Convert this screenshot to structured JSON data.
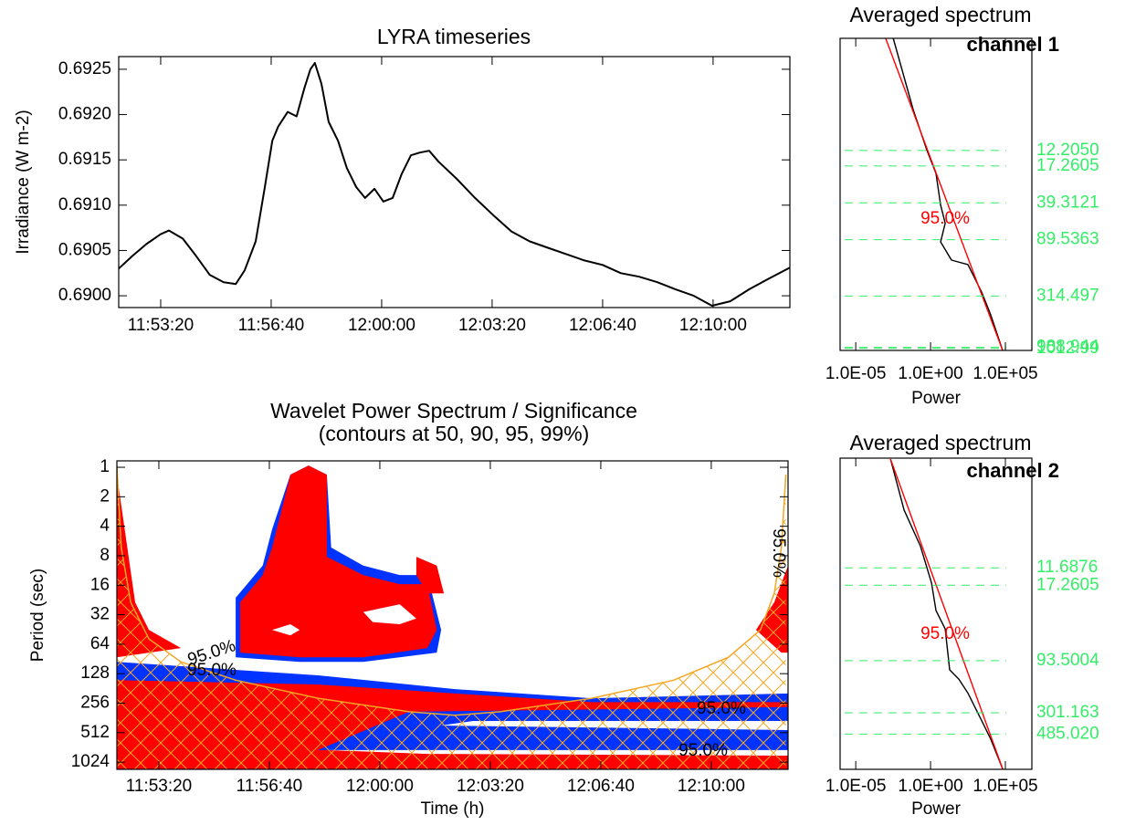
{
  "chart_data": [
    {
      "type": "line",
      "title": "LYRA timeseries",
      "ylabel": "Irradiance (W m-2)",
      "xlim": [
        "11:52:04",
        "12:12:19"
      ],
      "xticks": [
        "11:53:20",
        "11:56:40",
        "12:00:00",
        "12:03:20",
        "12:06:40",
        "12:10:00"
      ],
      "ylim": [
        0.68987,
        0.69264
      ],
      "yticks": [
        {
          "value": 0.69,
          "label": "0.6900"
        },
        {
          "value": 0.6905,
          "label": "0.6905"
        },
        {
          "value": 0.691,
          "label": "0.6910"
        },
        {
          "value": 0.6915,
          "label": "0.6915"
        },
        {
          "value": 0.692,
          "label": "0.6920"
        },
        {
          "value": 0.6925,
          "label": "0.6925"
        }
      ],
      "series": [
        {
          "color": "#000000",
          "x": [
            "11:52:04",
            "11:52:29",
            "11:52:54",
            "11:53:20",
            "11:53:35",
            "11:54:00",
            "11:54:24",
            "11:54:49",
            "11:55:14",
            "11:55:36",
            "11:55:52",
            "11:56:12",
            "11:56:28",
            "11:56:42",
            "11:56:53",
            "11:57:10",
            "11:57:26",
            "11:57:40",
            "11:57:51",
            "11:57:59",
            "11:58:11",
            "11:58:24",
            "11:58:41",
            "11:58:57",
            "11:59:14",
            "11:59:30",
            "11:59:47",
            "12:00:03",
            "12:00:20",
            "12:00:36",
            "12:00:53",
            "12:01:09",
            "12:01:26",
            "12:01:43",
            "12:02:16",
            "12:02:49",
            "12:03:22",
            "12:03:55",
            "12:04:28",
            "12:05:01",
            "12:05:34",
            "12:06:07",
            "12:06:40",
            "12:07:13",
            "12:07:46",
            "12:08:19",
            "12:08:52",
            "12:09:25",
            "12:09:58",
            "12:10:31",
            "12:11:05",
            "12:11:38",
            "12:12:19"
          ],
          "values": [
            0.6903,
            0.69044,
            0.69057,
            0.69068,
            0.69072,
            0.69063,
            0.69044,
            0.69023,
            0.69015,
            0.69013,
            0.69028,
            0.6906,
            0.69118,
            0.69171,
            0.69187,
            0.69203,
            0.69198,
            0.69229,
            0.6925,
            0.69257,
            0.69234,
            0.69192,
            0.69171,
            0.69141,
            0.6912,
            0.69108,
            0.69118,
            0.69104,
            0.69108,
            0.69134,
            0.69155,
            0.69158,
            0.6916,
            0.69148,
            0.69129,
            0.69108,
            0.69089,
            0.69071,
            0.6906,
            0.69053,
            0.69046,
            0.69039,
            0.69034,
            0.69025,
            0.69021,
            0.69015,
            0.69007,
            0.69,
            0.68989,
            0.68994,
            0.69007,
            0.69018,
            0.69031
          ]
        }
      ]
    },
    {
      "type": "contour",
      "title": "Wavelet Power Spectrum / Significance",
      "subtitle": "(contours at 50, 90, 95, 99%)",
      "xlabel": "Time (h)",
      "ylabel": "Period (sec)",
      "xlim": [
        "11:52:04",
        "12:12:19"
      ],
      "xticks": [
        "11:53:20",
        "11:56:40",
        "12:00:00",
        "12:03:20",
        "12:06:40",
        "12:10:00"
      ],
      "ylim": [
        0.86,
        1213
      ],
      "ylog": true,
      "yreverse": true,
      "yticks": [
        1,
        2,
        4,
        8,
        16,
        32,
        64,
        128,
        256,
        512,
        1024
      ],
      "regions": [
        {
          "color": "#0033ff",
          "points": [
            [
              "11:52:04",
              97
            ],
            [
              "11:58:08",
              133
            ],
            [
              "12:02:16",
              184
            ],
            [
              "12:06:24",
              228
            ],
            [
              "12:12:19",
              204
            ],
            [
              "12:12:19",
              1213
            ],
            [
              "11:52:04",
              1213
            ]
          ]
        },
        {
          "color": "#ff0000",
          "points": [
            [
              "11:52:04",
              149
            ],
            [
              "11:58:08",
              165
            ],
            [
              "12:02:16",
              204
            ],
            [
              "12:06:24",
              250
            ],
            [
              "12:12:19",
              250
            ],
            [
              "12:12:19",
              1213
            ],
            [
              "11:52:04",
              1213
            ]
          ]
        },
        {
          "color": "#0033ff",
          "points": [
            [
              "12:00:53",
              313
            ],
            [
              "12:12:19",
              281
            ],
            [
              "12:12:19",
              880
            ],
            [
              "11:58:08",
              772
            ]
          ]
        },
        {
          "color": "#ffffff",
          "points": [
            [
              "12:02:49",
              389
            ],
            [
              "12:12:19",
              389
            ],
            [
              "12:12:19",
              482
            ],
            [
              "12:01:51",
              433
            ]
          ]
        },
        {
          "color": "#ffffff",
          "points": [
            [
              "11:58:24",
              772
            ],
            [
              "12:12:19",
              772
            ],
            [
              "12:12:19",
              880
            ],
            [
              "12:01:26",
              845
            ]
          ]
        },
        {
          "color": "#0033ff",
          "points": [
            [
              "11:55:39",
              87
            ],
            [
              "11:55:39",
              21.5
            ],
            [
              "11:56:28",
              10.1
            ],
            [
              "11:56:45",
              4.3
            ],
            [
              "11:57:18",
              1.19
            ],
            [
              "11:57:51",
              0.96
            ],
            [
              "11:58:24",
              1.19
            ],
            [
              "11:58:32",
              6.6
            ],
            [
              "11:59:30",
              10.1
            ],
            [
              "12:00:36",
              12.6
            ],
            [
              "12:01:26",
              12.6
            ],
            [
              "12:01:51",
              45.7
            ],
            [
              "12:01:43",
              78
            ],
            [
              "11:59:30",
              97
            ],
            [
              "11:57:35",
              97
            ]
          ]
        },
        {
          "color": "#ff0000",
          "points": [
            [
              "11:55:47",
              78
            ],
            [
              "11:55:47",
              23.9
            ],
            [
              "11:56:28",
              12.6
            ],
            [
              "11:56:45",
              6.6
            ],
            [
              "11:57:18",
              1.19
            ],
            [
              "11:57:51",
              0.96
            ],
            [
              "11:58:24",
              1.19
            ],
            [
              "11:58:24",
              8.2
            ],
            [
              "11:59:30",
              12.6
            ],
            [
              "12:00:36",
              15.6
            ],
            [
              "12:01:26",
              15.6
            ],
            [
              "12:01:43",
              45.7
            ],
            [
              "12:01:26",
              70
            ],
            [
              "11:59:30",
              87
            ],
            [
              "11:57:35",
              87
            ]
          ]
        },
        {
          "color": "#ffffff",
          "points": [
            [
              "11:56:45",
              45.7
            ],
            [
              "11:57:18",
              40
            ],
            [
              "11:57:35",
              45.7
            ],
            [
              "11:57:18",
              52
            ]
          ]
        },
        {
          "color": "#ffffff",
          "points": [
            [
              "11:59:30",
              30
            ],
            [
              "12:00:36",
              25
            ],
            [
              "12:01:06",
              35
            ],
            [
              "12:00:36",
              40
            ],
            [
              "11:59:47",
              38
            ]
          ]
        },
        {
          "color": "#ff0000",
          "points": [
            [
              "12:01:06",
              8.2
            ],
            [
              "12:01:43",
              10.1
            ],
            [
              "12:01:56",
              19.4
            ],
            [
              "12:01:26",
              19.4
            ],
            [
              "12:01:06",
              12.6
            ]
          ]
        },
        {
          "color": "#ff0000",
          "points": [
            [
              "11:52:04",
              1.19
            ],
            [
              "11:52:37",
              23.9
            ],
            [
              "11:53:02",
              45.7
            ],
            [
              "11:54:00",
              70
            ],
            [
              "11:52:04",
              87
            ]
          ]
        },
        {
          "color": "#ff0000",
          "points": [
            [
              "12:12:19",
              10.1
            ],
            [
              "12:11:54",
              23.9
            ],
            [
              "12:11:21",
              45.7
            ],
            [
              "12:12:07",
              78
            ],
            [
              "12:12:19",
              78
            ]
          ]
        }
      ],
      "coi": {
        "color": "#f5a623",
        "x": [
          "11:52:04",
          "11:52:12",
          "11:52:29",
          "11:53:02",
          "11:54:00",
          "11:55:39",
          "11:58:08",
          "12:00:53",
          "12:02:16",
          "12:03:38",
          "12:06:24",
          "12:08:52",
          "12:10:31",
          "12:11:29",
          "12:11:54",
          "12:12:07",
          "12:12:15"
        ],
        "values": [
          0.96,
          6.6,
          23.9,
          56.5,
          97,
          149,
          228,
          313,
          340,
          313,
          228,
          149,
          87,
          45.7,
          19.4,
          6.6,
          1.19
        ]
      },
      "annotations": [
        "95.0%",
        "95.0%",
        "95.0%",
        "95.0%",
        "95.0%"
      ]
    },
    {
      "type": "line",
      "title": "Averaged spectrum",
      "subtitle": "channel 1",
      "xlabel": "Power",
      "xlog": true,
      "xlim": [
        9e-07,
        5900000
      ],
      "xticks": [
        {
          "value": 1e-05,
          "label": "1.0E-05"
        },
        {
          "value": 1,
          "label": "1.0E+00"
        },
        {
          "value": 100000,
          "label": "1.0E+05"
        }
      ],
      "ylog": true,
      "yreverse": true,
      "ylim": [
        1,
        1060
      ],
      "series": [
        {
          "color": "#000000",
          "x": [
            0.0032,
            0.069,
            0.57,
            2.3,
            4.7,
            9.5,
            4.7,
            25,
            316,
            2600,
            10500,
            66000
          ],
          "values": [
            1.0,
            4.9,
            12.2,
            20.4,
            41.4,
            62,
            94,
            141,
            156,
            288,
            478,
            1060
          ]
        },
        {
          "color": "#ff0000",
          "x": [
            0.001,
            66000
          ],
          "values": [
            1.0,
            1060
          ]
        }
      ],
      "annotation": {
        "text": "95.0%",
        "color": "#ff0000"
      },
      "peaks": {
        "color": "#33ee66",
        "values": [
          12.205,
          17.2605,
          39.3121,
          89.5363,
          314.497,
          988.944,
          1012.99
        ],
        "value_labels": [
          "12.2050",
          "17.2605",
          "39.3121",
          "89.5363",
          "314.497",
          "988.944",
          "1012.99"
        ]
      }
    },
    {
      "type": "line",
      "title": "Averaged spectrum",
      "subtitle": "channel 2",
      "xlabel": "Power",
      "xlog": true,
      "xlim": [
        9e-07,
        5900000
      ],
      "xticks": [
        {
          "value": 1e-05,
          "label": "1.0E-05"
        },
        {
          "value": 1,
          "label": "1.0E+00"
        },
        {
          "value": 100000,
          "label": "1.0E+05"
        }
      ],
      "ylog": true,
      "yreverse": true,
      "ylim": [
        1,
        1070
      ],
      "series": [
        {
          "color": "#000000",
          "x": [
            0.0021,
            0.017,
            0.21,
            1.15,
            2.3,
            9.5,
            19,
            78,
            316,
            2600,
            10500,
            66000
          ],
          "values": [
            1.02,
            3.2,
            7.2,
            16.4,
            30.4,
            46,
            115,
            142,
            194,
            359,
            541,
            1060
          ]
        },
        {
          "color": "#ff0000",
          "x": [
            0.0021,
            66000
          ],
          "values": [
            1.02,
            1060
          ]
        }
      ],
      "annotation": {
        "text": "95.0%",
        "color": "#ff0000"
      },
      "peaks": {
        "color": "#33ee66",
        "values": [
          11.6876,
          17.2605,
          93.5004,
          301.163,
          485.02
        ],
        "value_labels": [
          "11.6876",
          "17.2605",
          "93.5004",
          "301.163",
          "485.020"
        ]
      }
    }
  ]
}
